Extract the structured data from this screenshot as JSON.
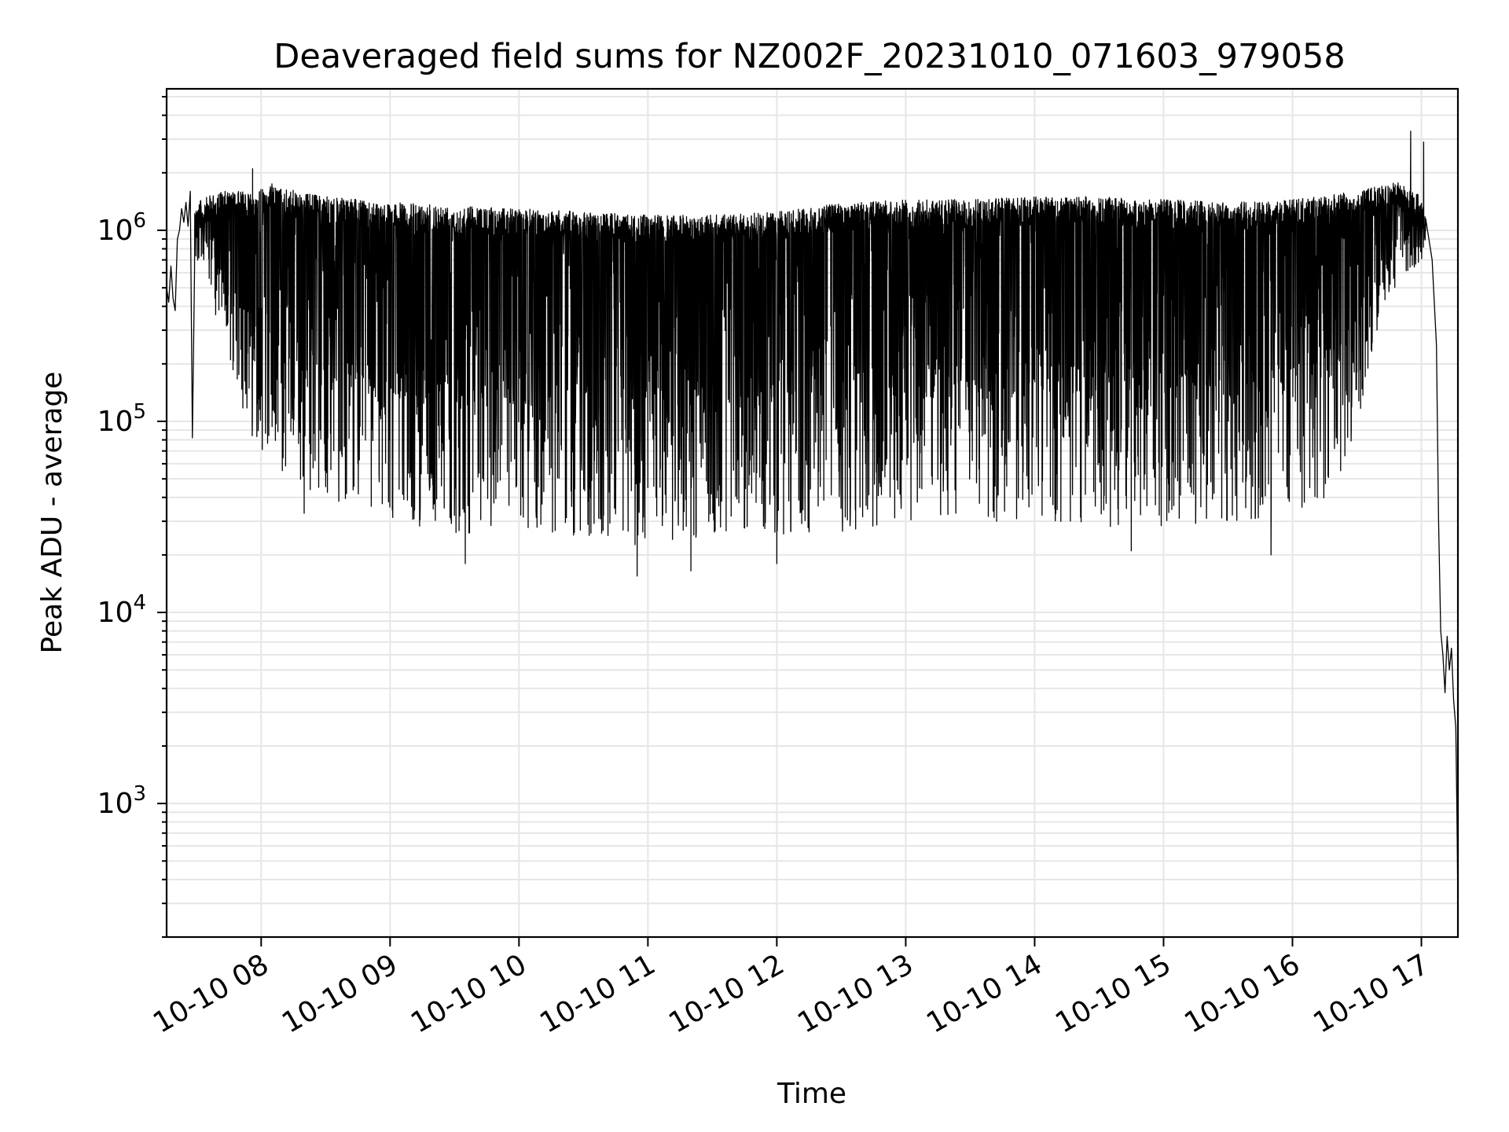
{
  "chart_data": {
    "type": "line",
    "title": "Deaveraged field sums for NZ002F_20231010_071603_979058",
    "xlabel": "Time",
    "ylabel": "Peak ADU - average",
    "yscale": "log",
    "ylim": [
      200,
      5500000
    ],
    "xlim": [
      "2023-10-10 07:16",
      "2023-10-10 17:17"
    ],
    "grid": true,
    "line_color": "#000000",
    "grid_color": "#e6e6e6",
    "x_ticks": [
      {
        "value": "2023-10-10 08:00",
        "label": "10-10 08"
      },
      {
        "value": "2023-10-10 09:00",
        "label": "10-10 09"
      },
      {
        "value": "2023-10-10 10:00",
        "label": "10-10 10"
      },
      {
        "value": "2023-10-10 11:00",
        "label": "10-10 11"
      },
      {
        "value": "2023-10-10 12:00",
        "label": "10-10 12"
      },
      {
        "value": "2023-10-10 13:00",
        "label": "10-10 13"
      },
      {
        "value": "2023-10-10 14:00",
        "label": "10-10 14"
      },
      {
        "value": "2023-10-10 15:00",
        "label": "10-10 15"
      },
      {
        "value": "2023-10-10 16:00",
        "label": "10-10 16"
      },
      {
        "value": "2023-10-10 17:00",
        "label": "10-10 17"
      }
    ],
    "y_ticks": [
      {
        "value": 1000,
        "base": "10",
        "exp": "3"
      },
      {
        "value": 10000,
        "base": "10",
        "exp": "4"
      },
      {
        "value": 100000,
        "base": "10",
        "exp": "5"
      },
      {
        "value": 1000000,
        "base": "10",
        "exp": "6"
      }
    ],
    "series": [
      {
        "envelope": {
          "description_of_values": "upper/lower envelope of the dense signal over time (time, peak ADU)",
          "upper": [
            [
              "2023-10-10 07:16",
              650000
            ],
            [
              "2023-10-10 07:20",
              600000
            ],
            [
              "2023-10-10 07:25",
              1300000
            ],
            [
              "2023-10-10 07:30",
              1400000
            ],
            [
              "2023-10-10 07:40",
              1600000
            ],
            [
              "2023-10-10 07:55",
              1600000
            ],
            [
              "2023-10-10 08:05",
              1700000
            ],
            [
              "2023-10-10 08:30",
              1500000
            ],
            [
              "2023-10-10 09:00",
              1400000
            ],
            [
              "2023-10-10 09:30",
              1350000
            ],
            [
              "2023-10-10 10:00",
              1300000
            ],
            [
              "2023-10-10 10:30",
              1250000
            ],
            [
              "2023-10-10 11:00",
              1200000
            ],
            [
              "2023-10-10 11:30",
              1200000
            ],
            [
              "2023-10-10 12:00",
              1250000
            ],
            [
              "2023-10-10 12:30",
              1400000
            ],
            [
              "2023-10-10 13:00",
              1450000
            ],
            [
              "2023-10-10 13:30",
              1450000
            ],
            [
              "2023-10-10 14:00",
              1500000
            ],
            [
              "2023-10-10 14:30",
              1500000
            ],
            [
              "2023-10-10 15:00",
              1450000
            ],
            [
              "2023-10-10 15:30",
              1400000
            ],
            [
              "2023-10-10 16:00",
              1450000
            ],
            [
              "2023-10-10 16:30",
              1600000
            ],
            [
              "2023-10-10 16:50",
              1800000
            ],
            [
              "2023-10-10 17:00",
              1500000
            ],
            [
              "2023-10-10 17:03",
              1000000
            ]
          ],
          "lower": [
            [
              "2023-10-10 07:16",
              380000
            ],
            [
              "2023-10-10 07:20",
              400000
            ],
            [
              "2023-10-10 07:25",
              900000
            ],
            [
              "2023-10-10 07:35",
              500000
            ],
            [
              "2023-10-10 07:45",
              200000
            ],
            [
              "2023-10-10 07:55",
              85000
            ],
            [
              "2023-10-10 08:10",
              50000
            ],
            [
              "2023-10-10 08:30",
              40000
            ],
            [
              "2023-10-10 09:00",
              30000
            ],
            [
              "2023-10-10 09:30",
              26000
            ],
            [
              "2023-10-10 10:00",
              25000
            ],
            [
              "2023-10-10 10:30",
              24000
            ],
            [
              "2023-10-10 11:00",
              22000
            ],
            [
              "2023-10-10 11:30",
              24000
            ],
            [
              "2023-10-10 12:00",
              25000
            ],
            [
              "2023-10-10 12:30",
              26000
            ],
            [
              "2023-10-10 13:00",
              28000
            ],
            [
              "2023-10-10 13:30",
              30000
            ],
            [
              "2023-10-10 14:00",
              30000
            ],
            [
              "2023-10-10 14:30",
              28000
            ],
            [
              "2023-10-10 15:00",
              28000
            ],
            [
              "2023-10-10 15:30",
              30000
            ],
            [
              "2023-10-10 16:00",
              32000
            ],
            [
              "2023-10-10 16:20",
              40000
            ],
            [
              "2023-10-10 16:35",
              150000
            ],
            [
              "2023-10-10 16:45",
              450000
            ],
            [
              "2023-10-10 17:00",
              700000
            ]
          ]
        },
        "spikes_low": [
          [
            "2023-10-10 07:28",
            82000
          ],
          [
            "2023-10-10 08:20",
            33000
          ],
          [
            "2023-10-10 09:35",
            18000
          ],
          [
            "2023-10-10 10:55",
            15500
          ],
          [
            "2023-10-10 11:20",
            16500
          ],
          [
            "2023-10-10 12:00",
            18000
          ],
          [
            "2023-10-10 14:45",
            21000
          ],
          [
            "2023-10-10 15:50",
            20000
          ]
        ],
        "spikes_high": [
          [
            "2023-10-10 07:56",
            2100000
          ],
          [
            "2023-10-10 08:05",
            1750000
          ],
          [
            "2023-10-10 16:55",
            3300000
          ],
          [
            "2023-10-10 17:01",
            2900000
          ]
        ],
        "tail": [
          [
            "2023-10-10 17:02",
            1150000
          ],
          [
            "2023-10-10 17:05",
            700000
          ],
          [
            "2023-10-10 17:07",
            250000
          ],
          [
            "2023-10-10 17:08",
            30000
          ],
          [
            "2023-10-10 17:09",
            8000
          ],
          [
            "2023-10-10 17:10",
            6000
          ],
          [
            "2023-10-10 17:11",
            3800
          ],
          [
            "2023-10-10 17:12",
            7500
          ],
          [
            "2023-10-10 17:13",
            5000
          ],
          [
            "2023-10-10 17:14",
            6500
          ],
          [
            "2023-10-10 17:15",
            3500
          ],
          [
            "2023-10-10 17:16",
            2500
          ],
          [
            "2023-10-10 17:16:30",
            1000
          ],
          [
            "2023-10-10 17:17",
            300
          ]
        ],
        "start": [
          [
            "2023-10-10 07:16",
            500000
          ],
          [
            "2023-10-10 07:17",
            420000
          ],
          [
            "2023-10-10 07:18",
            650000
          ],
          [
            "2023-10-10 07:19",
            440000
          ],
          [
            "2023-10-10 07:20",
            380000
          ],
          [
            "2023-10-10 07:21",
            900000
          ],
          [
            "2023-10-10 07:22",
            1000000
          ],
          [
            "2023-10-10 07:23",
            1300000
          ],
          [
            "2023-10-10 07:24",
            1100000
          ],
          [
            "2023-10-10 07:25",
            1400000
          ],
          [
            "2023-10-10 07:26",
            1050000
          ],
          [
            "2023-10-10 07:27",
            1600000
          ],
          [
            "2023-10-10 07:28",
            82000
          ],
          [
            "2023-10-10 07:29",
            600000
          ]
        ]
      }
    ]
  }
}
